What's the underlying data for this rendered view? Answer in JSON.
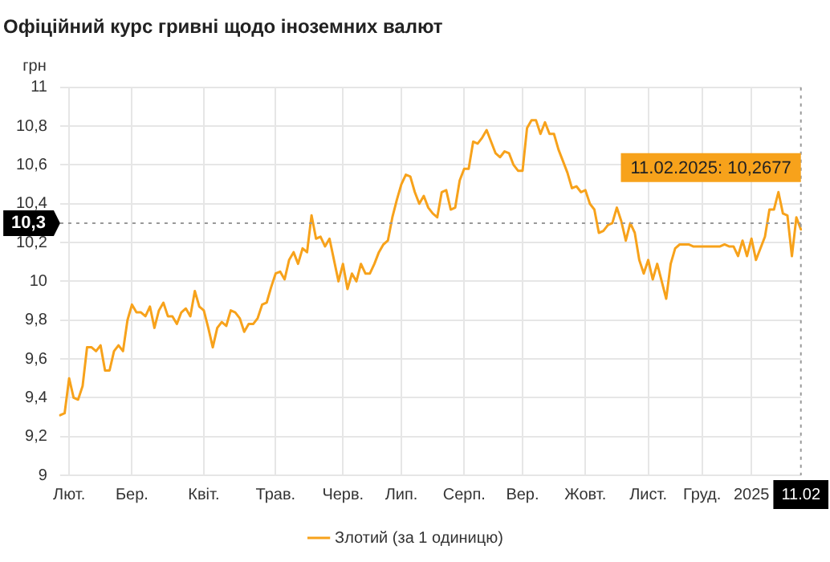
{
  "chart_data": {
    "type": "line",
    "title": "Офіційний курс гривні щодо іноземних валют",
    "ylabel": "грн",
    "categories": [
      null,
      null,
      "Лют.",
      null,
      null,
      null,
      null,
      null,
      null,
      null,
      null,
      null,
      null,
      null,
      null,
      null,
      "Бер.",
      null,
      null,
      null,
      null,
      null,
      null,
      null,
      null,
      null,
      null,
      null,
      null,
      null,
      null,
      null,
      "Квіт.",
      null,
      null,
      null,
      null,
      null,
      null,
      null,
      null,
      null,
      null,
      null,
      null,
      null,
      null,
      null,
      "Трав.",
      null,
      null,
      null,
      null,
      null,
      null,
      null,
      null,
      null,
      null,
      null,
      null,
      null,
      null,
      "Черв.",
      null,
      null,
      null,
      null,
      null,
      null,
      null,
      null,
      null,
      null,
      null,
      null,
      "Лип.",
      null,
      null,
      null,
      null,
      null,
      null,
      null,
      null,
      null,
      null,
      null,
      null,
      null,
      "Серп.",
      null,
      null,
      null,
      null,
      null,
      null,
      null,
      null,
      null,
      null,
      null,
      null,
      "Вер.",
      null,
      null,
      null,
      null,
      null,
      null,
      null,
      null,
      null,
      null,
      null,
      null,
      null,
      "Жовт.",
      null,
      null,
      null,
      null,
      null,
      null,
      null,
      null,
      null,
      null,
      null,
      null,
      null,
      "Лист.",
      null,
      null,
      null,
      null,
      null,
      null,
      null,
      null,
      null,
      null,
      null,
      "Груд.",
      null,
      null,
      null,
      null,
      null,
      null,
      null,
      null,
      null,
      null,
      "2025",
      null,
      null,
      null,
      null,
      null,
      null,
      null,
      null,
      null,
      null,
      "11.02"
    ],
    "series": [
      {
        "name": "Злотий (за 1 одиницю)",
        "color": "#f7a21b",
        "values": [
          9.31,
          9.32,
          9.5,
          9.4,
          9.39,
          9.46,
          9.66,
          9.66,
          9.64,
          9.67,
          9.54,
          9.54,
          9.64,
          9.67,
          9.64,
          9.8,
          9.88,
          9.84,
          9.84,
          9.82,
          9.87,
          9.76,
          9.85,
          9.89,
          9.82,
          9.82,
          9.78,
          9.84,
          9.86,
          9.82,
          9.95,
          9.87,
          9.85,
          9.76,
          9.66,
          9.76,
          9.79,
          9.77,
          9.85,
          9.84,
          9.81,
          9.74,
          9.78,
          9.78,
          9.81,
          9.88,
          9.89,
          9.97,
          10.04,
          10.05,
          10.01,
          10.11,
          10.15,
          10.09,
          10.17,
          10.15,
          10.34,
          10.22,
          10.23,
          10.18,
          10.22,
          10.11,
          10,
          10.09,
          9.96,
          10.04,
          10,
          10.09,
          10.04,
          10.04,
          10.09,
          10.15,
          10.19,
          10.21,
          10.33,
          10.42,
          10.5,
          10.55,
          10.54,
          10.46,
          10.4,
          10.44,
          10.38,
          10.35,
          10.33,
          10.46,
          10.47,
          10.37,
          10.38,
          10.52,
          10.58,
          10.58,
          10.72,
          10.71,
          10.74,
          10.78,
          10.72,
          10.66,
          10.64,
          10.67,
          10.66,
          10.6,
          10.57,
          10.57,
          10.79,
          10.83,
          10.83,
          10.76,
          10.82,
          10.76,
          10.76,
          10.68,
          10.62,
          10.56,
          10.48,
          10.49,
          10.46,
          10.47,
          10.4,
          10.37,
          10.25,
          10.26,
          10.29,
          10.3,
          10.38,
          10.31,
          10.21,
          10.3,
          10.25,
          10.11,
          10.04,
          10.11,
          10.01,
          10.09,
          10,
          9.91,
          10.09,
          10.17,
          10.19,
          10.19,
          10.19,
          10.18,
          10.18,
          10.18,
          10.18,
          10.18,
          10.18,
          10.18,
          10.19,
          10.18,
          10.18,
          10.13,
          10.21,
          10.13,
          10.22,
          10.11,
          10.17,
          10.23,
          10.37,
          10.37,
          10.46,
          10.35,
          10.34,
          10.13,
          10.33,
          10.2677
        ]
      }
    ],
    "ylim": [
      9,
      11
    ],
    "yticks": [
      9,
      {
        "value": 9.2,
        "label": "9,2"
      },
      {
        "value": 9.4,
        "label": "9,4"
      },
      {
        "value": 9.6,
        "label": "9,6"
      },
      {
        "value": 9.8,
        "label": "9,8"
      },
      10,
      {
        "value": 10.2,
        "label": "10,2"
      },
      {
        "value": 10.4,
        "label": "10,4"
      },
      {
        "value": 10.6,
        "label": "10,6"
      },
      {
        "value": 10.8,
        "label": "10,8"
      },
      11
    ],
    "ref_lines": [
      {
        "axis": "y",
        "value": 10.3,
        "label": "10,3",
        "line_style": "dotted"
      },
      {
        "axis": "x",
        "value": "11.02",
        "line_style": "dotted"
      }
    ],
    "annotations": [
      "11.02.2025: 10,2677"
    ],
    "grid": true,
    "legend": "bottom",
    "marker": "none",
    "line_style": "solid"
  }
}
